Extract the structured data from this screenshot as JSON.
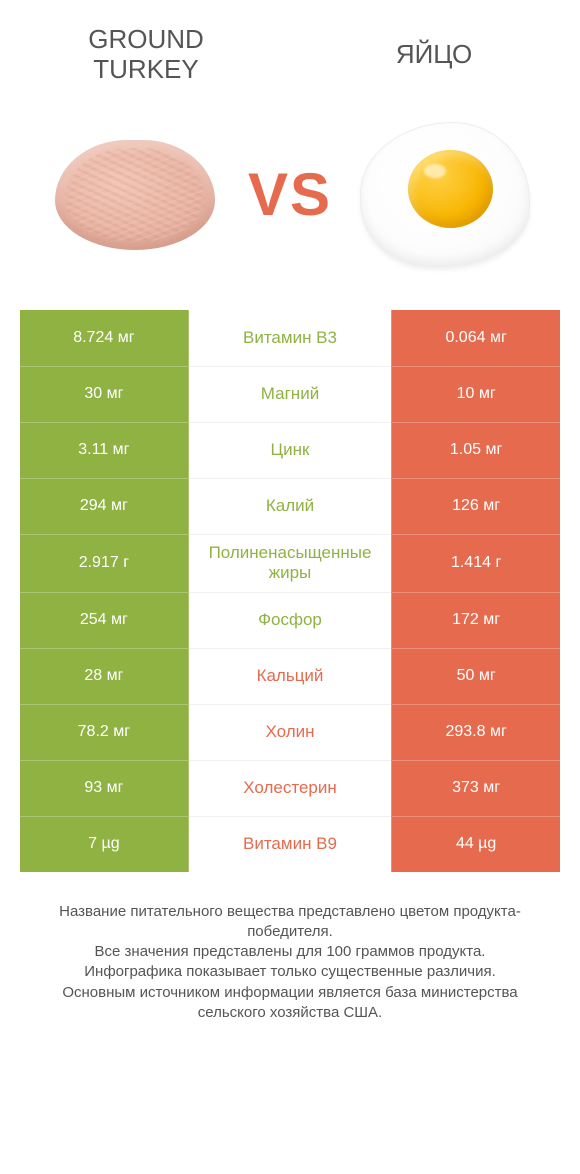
{
  "colors": {
    "left": "#8fb243",
    "right": "#e66a4d",
    "vs": "#e66a4d",
    "text": "#333333",
    "title": "#555555"
  },
  "titles": {
    "left": "GROUND\nTURKEY",
    "right": "ЯЙЦО",
    "vs": "VS"
  },
  "rows": [
    {
      "label": "Витамин B3",
      "left": "8.724 мг",
      "right": "0.064 мг",
      "label_color": "left"
    },
    {
      "label": "Магний",
      "left": "30 мг",
      "right": "10 мг",
      "label_color": "left"
    },
    {
      "label": "Цинк",
      "left": "3.11 мг",
      "right": "1.05 мг",
      "label_color": "left"
    },
    {
      "label": "Калий",
      "left": "294 мг",
      "right": "126 мг",
      "label_color": "left"
    },
    {
      "label": "Полиненасыщенные жиры",
      "left": "2.917 г",
      "right": "1.414 г",
      "label_color": "left"
    },
    {
      "label": "Фосфор",
      "left": "254 мг",
      "right": "172 мг",
      "label_color": "left"
    },
    {
      "label": "Кальций",
      "left": "28 мг",
      "right": "50 мг",
      "label_color": "right"
    },
    {
      "label": "Холин",
      "left": "78.2 мг",
      "right": "293.8 мг",
      "label_color": "right"
    },
    {
      "label": "Холестерин",
      "left": "93 мг",
      "right": "373 мг",
      "label_color": "right"
    },
    {
      "label": "Витамин B9",
      "left": "7 µg",
      "right": "44 µg",
      "label_color": "right"
    }
  ],
  "footnote": "Название питательного вещества представлено цветом продукта-победителя.\nВсе значения представлены для 100 граммов продукта.\nИнфографика показывает только существенные различия.\nОсновным источником информации является база министерства сельского хозяйства США."
}
